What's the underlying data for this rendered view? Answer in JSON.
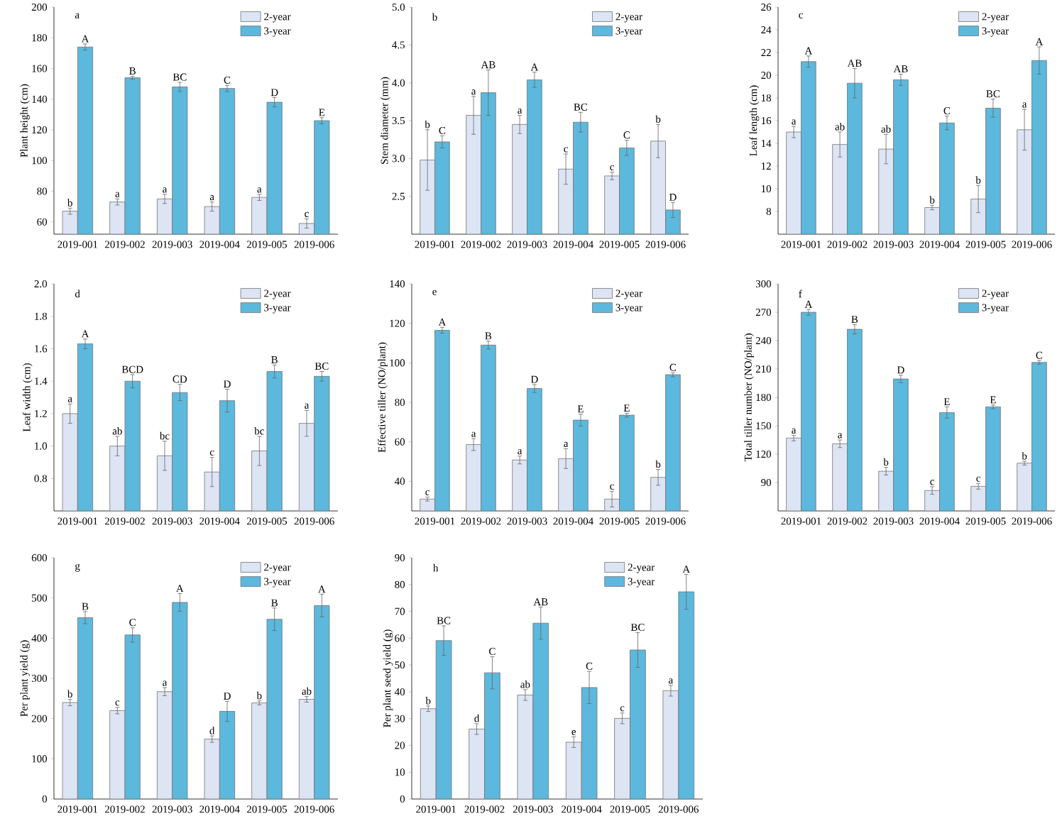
{
  "chart_data": [
    {
      "type": "bar",
      "annotations": [
        "a"
      ],
      "ylabel": "Plant height (cm)",
      "categories": [
        "2019-001",
        "2019-002",
        "2019-003",
        "2019-004",
        "2019-005",
        "2019-006"
      ],
      "ylim": [
        52,
        200
      ],
      "yticks": [
        60,
        80,
        100,
        120,
        140,
        160,
        180,
        200
      ],
      "legend": "top right",
      "series": [
        {
          "name": "2-year",
          "color": "#dde4f4",
          "values": [
            67,
            73,
            75,
            70,
            76,
            59
          ],
          "errors": [
            2,
            2,
            3,
            3,
            2,
            3
          ],
          "value_labels": [
            "b",
            "a",
            "a",
            "a",
            "a",
            "c"
          ]
        },
        {
          "name": "3-year",
          "color": "#5cb8dc",
          "values": [
            174,
            154,
            148,
            147,
            138,
            126
          ],
          "errors": [
            2,
            1,
            3,
            2,
            3,
            2
          ],
          "value_labels": [
            "A",
            "B",
            "BC",
            "C",
            "D",
            "E"
          ]
        }
      ]
    },
    {
      "type": "bar",
      "annotations": [
        "b"
      ],
      "ylabel": "Stem diameter (mm)",
      "categories": [
        "2019-001",
        "2019-002",
        "2019-003",
        "2019-004",
        "2019-005",
        "2019-006"
      ],
      "ylim": [
        2.0,
        5.0
      ],
      "yticks": [
        {
          "value": 2.5,
          "label": "2.5"
        },
        {
          "value": 3,
          "label": "3.0"
        },
        {
          "value": 3.5,
          "label": "3.5"
        },
        {
          "value": 4,
          "label": "4.0"
        },
        {
          "value": 4.5,
          "label": "4.5"
        },
        {
          "value": 5,
          "label": "5.0"
        }
      ],
      "legend": "top right",
      "series": [
        {
          "name": "2-year",
          "color": "#dde4f4",
          "values": [
            2.98,
            3.57,
            3.45,
            2.86,
            2.77,
            3.23
          ],
          "errors": [
            0.4,
            0.25,
            0.12,
            0.2,
            0.05,
            0.22
          ],
          "value_labels": [
            "b",
            "a",
            "a",
            "c",
            "c",
            "b"
          ]
        },
        {
          "name": "3-year",
          "color": "#5cb8dc",
          "values": [
            3.22,
            3.87,
            4.04,
            3.48,
            3.14,
            2.32
          ],
          "errors": [
            0.08,
            0.3,
            0.1,
            0.13,
            0.1,
            0.1
          ],
          "value_labels": [
            "C",
            "AB",
            "A",
            "BC",
            "C",
            "D"
          ]
        }
      ]
    },
    {
      "type": "bar",
      "annotations": [
        "c"
      ],
      "ylabel": "Leaf length (cm)",
      "categories": [
        "2019-001",
        "2019-002",
        "2019-003",
        "2019-004",
        "2019-005",
        "2019-006"
      ],
      "ylim": [
        6,
        26
      ],
      "yticks": [
        8,
        10,
        12,
        14,
        16,
        18,
        20,
        22,
        24,
        26
      ],
      "legend": "top right",
      "series": [
        {
          "name": "2-year",
          "color": "#dde4f4",
          "values": [
            15.0,
            13.9,
            13.5,
            8.35,
            9.1,
            15.2
          ],
          "errors": [
            0.5,
            1.1,
            1.3,
            0.2,
            1.2,
            1.8
          ],
          "value_labels": [
            "a",
            "ab",
            "ab",
            "b",
            "b",
            "a"
          ]
        },
        {
          "name": "3-year",
          "color": "#5cb8dc",
          "values": [
            21.2,
            19.3,
            19.6,
            15.8,
            17.1,
            21.3
          ],
          "errors": [
            0.5,
            1.3,
            0.5,
            0.6,
            0.8,
            1.2
          ],
          "value_labels": [
            "A",
            "AB",
            "AB",
            "C",
            "BC",
            "A"
          ]
        }
      ]
    },
    {
      "type": "bar",
      "annotations": [
        "d"
      ],
      "ylabel": "Leaf width (cm)",
      "categories": [
        "2019-001",
        "2019-002",
        "2019-003",
        "2019-004",
        "2019-005",
        "2019-006"
      ],
      "ylim": [
        0.6,
        2.0
      ],
      "yticks": [
        {
          "value": 0.8,
          "label": "0.8"
        },
        {
          "value": 1,
          "label": "1.0"
        },
        {
          "value": 1.2,
          "label": "1.2"
        },
        {
          "value": 1.4,
          "label": "1.4"
        },
        {
          "value": 1.6,
          "label": "1.6"
        },
        {
          "value": 1.8,
          "label": "1.8"
        },
        {
          "value": 2,
          "label": "2.0"
        }
      ],
      "legend": "top right",
      "series": [
        {
          "name": "2-year",
          "color": "#dde4f4",
          "values": [
            1.2,
            1.0,
            0.94,
            0.84,
            0.97,
            1.14
          ],
          "errors": [
            0.06,
            0.06,
            0.09,
            0.09,
            0.09,
            0.08
          ],
          "value_labels": [
            "a",
            "ab",
            "bc",
            "c",
            "bc",
            "a"
          ]
        },
        {
          "name": "3-year",
          "color": "#5cb8dc",
          "values": [
            1.63,
            1.4,
            1.33,
            1.28,
            1.46,
            1.43
          ],
          "errors": [
            0.03,
            0.04,
            0.05,
            0.07,
            0.04,
            0.03
          ],
          "value_labels": [
            "A",
            "BCD",
            "CD",
            "D",
            "B",
            "BC"
          ]
        }
      ]
    },
    {
      "type": "bar",
      "annotations": [
        "e"
      ],
      "ylabel": "Effective tiller (NO/plant)",
      "categories": [
        "2019-001",
        "2019-002",
        "2019-003",
        "2019-004",
        "2019-005",
        "2019-006"
      ],
      "ylim": [
        25,
        140
      ],
      "yticks": [
        40,
        60,
        80,
        100,
        120,
        140
      ],
      "legend": "top right",
      "series": [
        {
          "name": "2-year",
          "color": "#dde4f4",
          "values": [
            31,
            58.6,
            50.8,
            51.5,
            31,
            42
          ],
          "errors": [
            1,
            3,
            2,
            5,
            4,
            4
          ],
          "value_labels": [
            "c",
            "a",
            "a",
            "a",
            "c",
            "b"
          ]
        },
        {
          "name": "3-year",
          "color": "#5cb8dc",
          "values": [
            116.5,
            109,
            87,
            71,
            73.5,
            94
          ],
          "errors": [
            1.5,
            2,
            2,
            3,
            1,
            1
          ],
          "value_labels": [
            "A",
            "B",
            "D",
            "E",
            "E",
            "C"
          ]
        }
      ]
    },
    {
      "type": "bar",
      "annotations": [
        "f"
      ],
      "ylabel": "Total tiller number (NO/plant)",
      "categories": [
        "2019-001",
        "2019-002",
        "2019-003",
        "2019-004",
        "2019-005",
        "2019-006"
      ],
      "ylim": [
        60,
        300
      ],
      "yticks": [
        90,
        120,
        150,
        180,
        210,
        240,
        270,
        300
      ],
      "legend": "top right",
      "series": [
        {
          "name": "2-year",
          "color": "#dde4f4",
          "values": [
            137,
            131,
            102,
            81.6,
            86,
            110.5
          ],
          "errors": [
            3,
            4,
            4,
            4,
            3,
            2
          ],
          "value_labels": [
            "a",
            "a",
            "b",
            "c",
            "c",
            "b"
          ]
        },
        {
          "name": "3-year",
          "color": "#5cb8dc",
          "values": [
            270,
            252,
            199.5,
            164,
            170,
            217
          ],
          "errors": [
            3,
            5,
            4,
            6,
            2,
            2
          ],
          "value_labels": [
            "A",
            "B",
            "D",
            "E",
            "E",
            "C"
          ]
        }
      ]
    },
    {
      "type": "bar",
      "annotations": [
        "g"
      ],
      "ylabel": "Per plant yield (g)",
      "categories": [
        "2019-001",
        "2019-002",
        "2019-003",
        "2019-004",
        "2019-005",
        "2019-006"
      ],
      "ylim": [
        0,
        600
      ],
      "yticks": [
        0,
        100,
        200,
        300,
        400,
        500,
        600
      ],
      "legend": "top right",
      "series": [
        {
          "name": "2-year",
          "color": "#dde4f4",
          "values": [
            240,
            220,
            267,
            149,
            239,
            248
          ],
          "errors": [
            8,
            8,
            10,
            8,
            5,
            7
          ],
          "value_labels": [
            "b",
            "c",
            "a",
            "d",
            "b",
            "ab"
          ]
        },
        {
          "name": "3-year",
          "color": "#5cb8dc",
          "values": [
            451,
            408,
            489,
            218,
            447,
            481
          ],
          "errors": [
            15,
            18,
            22,
            25,
            28,
            28
          ],
          "value_labels": [
            "B",
            "C",
            "A",
            "D",
            "B",
            "A"
          ]
        }
      ]
    },
    {
      "type": "bar",
      "annotations": [
        "h"
      ],
      "ylabel": "Per plant seed yield (g)",
      "categories": [
        "2019-001",
        "2019-002",
        "2019-003",
        "2019-004",
        "2019-005",
        "2019-006"
      ],
      "ylim": [
        0,
        90
      ],
      "yticks": [
        0,
        10,
        20,
        30,
        40,
        50,
        60,
        70,
        80,
        90
      ],
      "legend": "top right",
      "series": [
        {
          "name": "2-year",
          "color": "#dde4f4",
          "values": [
            33.7,
            26.1,
            38.8,
            21.2,
            30.1,
            40.4
          ],
          "errors": [
            1,
            2,
            2,
            2,
            2,
            2
          ],
          "value_labels": [
            "b",
            "d",
            "ab",
            "e",
            "c",
            "a"
          ]
        },
        {
          "name": "3-year",
          "color": "#5cb8dc",
          "values": [
            59.1,
            47.1,
            65.6,
            41.6,
            55.6,
            77.3
          ],
          "errors": [
            5.5,
            6,
            6,
            6,
            6.5,
            6.5
          ],
          "value_labels": [
            "BC",
            "C",
            "AB",
            "C",
            "BC",
            "A"
          ]
        }
      ]
    }
  ]
}
